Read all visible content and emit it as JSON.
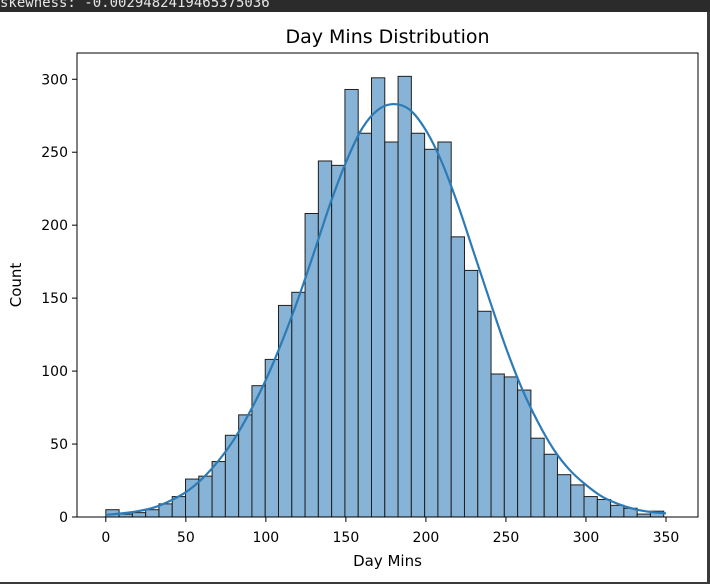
{
  "output_header": {
    "text": "skewness: -0.0029482419465375036"
  },
  "chart_data": {
    "type": "bar",
    "title": "Day Mins Distribution",
    "xlabel": "Day Mins",
    "ylabel": "Count",
    "xlim": [
      -18,
      370
    ],
    "ylim": [
      0,
      318
    ],
    "x_ticks": [
      0,
      50,
      100,
      150,
      200,
      250,
      300,
      350
    ],
    "y_ticks": [
      0,
      50,
      100,
      150,
      200,
      250,
      300
    ],
    "grid": false,
    "bin_start": 0,
    "bin_width": 8.3,
    "values": [
      5,
      2,
      3,
      5,
      9,
      14,
      26,
      28,
      38,
      56,
      70,
      90,
      108,
      145,
      154,
      208,
      244,
      241,
      293,
      263,
      301,
      257,
      302,
      263,
      252,
      257,
      192,
      169,
      141,
      98,
      96,
      87,
      54,
      43,
      29,
      22,
      14,
      12,
      8,
      6,
      2,
      4
    ],
    "bar_color": "#87b3d6",
    "bar_edge_color": "#1f1f1f",
    "kde": {
      "color": "#2c7bb6",
      "x": [
        0,
        10,
        20,
        30,
        40,
        50,
        60,
        70,
        80,
        90,
        100,
        110,
        120,
        130,
        140,
        150,
        160,
        170,
        180,
        190,
        200,
        210,
        220,
        230,
        240,
        250,
        260,
        270,
        280,
        290,
        300,
        310,
        320,
        330,
        340,
        350
      ],
      "y": [
        1.5,
        2.5,
        4,
        6.5,
        11,
        17,
        26,
        38,
        53,
        72,
        94,
        120,
        149,
        181,
        214,
        243,
        266,
        279,
        283,
        279,
        265,
        243,
        214,
        181,
        148,
        116,
        88,
        65,
        46,
        32,
        22,
        14,
        9,
        5.5,
        3.5,
        2.5
      ]
    }
  }
}
